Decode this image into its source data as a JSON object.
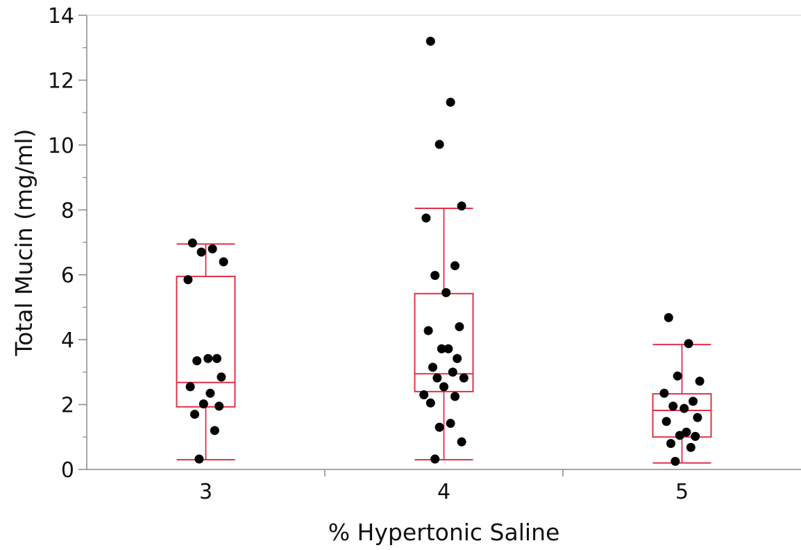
{
  "chart_data": {
    "type": "box",
    "title": "",
    "xlabel": "% Hypertonic Saline",
    "ylabel": "Total Mucin (mg/ml)",
    "ylim": [
      0,
      14
    ],
    "yticks": [
      "0",
      "2",
      "4",
      "6",
      "8",
      "10",
      "12",
      "14"
    ],
    "categories": [
      "3",
      "4",
      "5"
    ],
    "grid": false,
    "legend": "none",
    "colors": {
      "box": "#e0304a",
      "point": "#000000",
      "axis": "#888888"
    },
    "boxes": [
      {
        "category": "3",
        "min": 0.3,
        "q1": 1.93,
        "median": 2.68,
        "q3": 5.95,
        "max": 6.95
      },
      {
        "category": "4",
        "min": 0.3,
        "q1": 2.4,
        "median": 2.95,
        "q3": 5.42,
        "max": 8.05
      },
      {
        "category": "5",
        "min": 0.2,
        "q1": 1.0,
        "median": 1.82,
        "q3": 2.33,
        "max": 3.85
      }
    ],
    "points": [
      {
        "category": "3",
        "values": [
          6.98,
          6.8,
          6.7,
          6.4,
          5.85,
          3.42,
          3.35,
          3.42,
          2.85,
          2.55,
          2.35,
          2.02,
          1.95,
          1.7,
          1.2,
          0.32
        ]
      },
      {
        "category": "4",
        "values": [
          13.2,
          11.32,
          10.02,
          8.12,
          7.75,
          6.28,
          5.98,
          5.45,
          4.4,
          4.28,
          3.72,
          3.72,
          3.42,
          3.15,
          3.0,
          2.82,
          2.82,
          2.55,
          2.3,
          2.25,
          2.05,
          1.42,
          1.3,
          0.85,
          0.32
        ]
      },
      {
        "category": "5",
        "values": [
          4.68,
          3.88,
          2.88,
          2.72,
          2.35,
          2.1,
          1.95,
          1.88,
          1.6,
          1.48,
          1.15,
          1.05,
          1.02,
          0.8,
          0.68,
          0.25
        ]
      }
    ]
  }
}
